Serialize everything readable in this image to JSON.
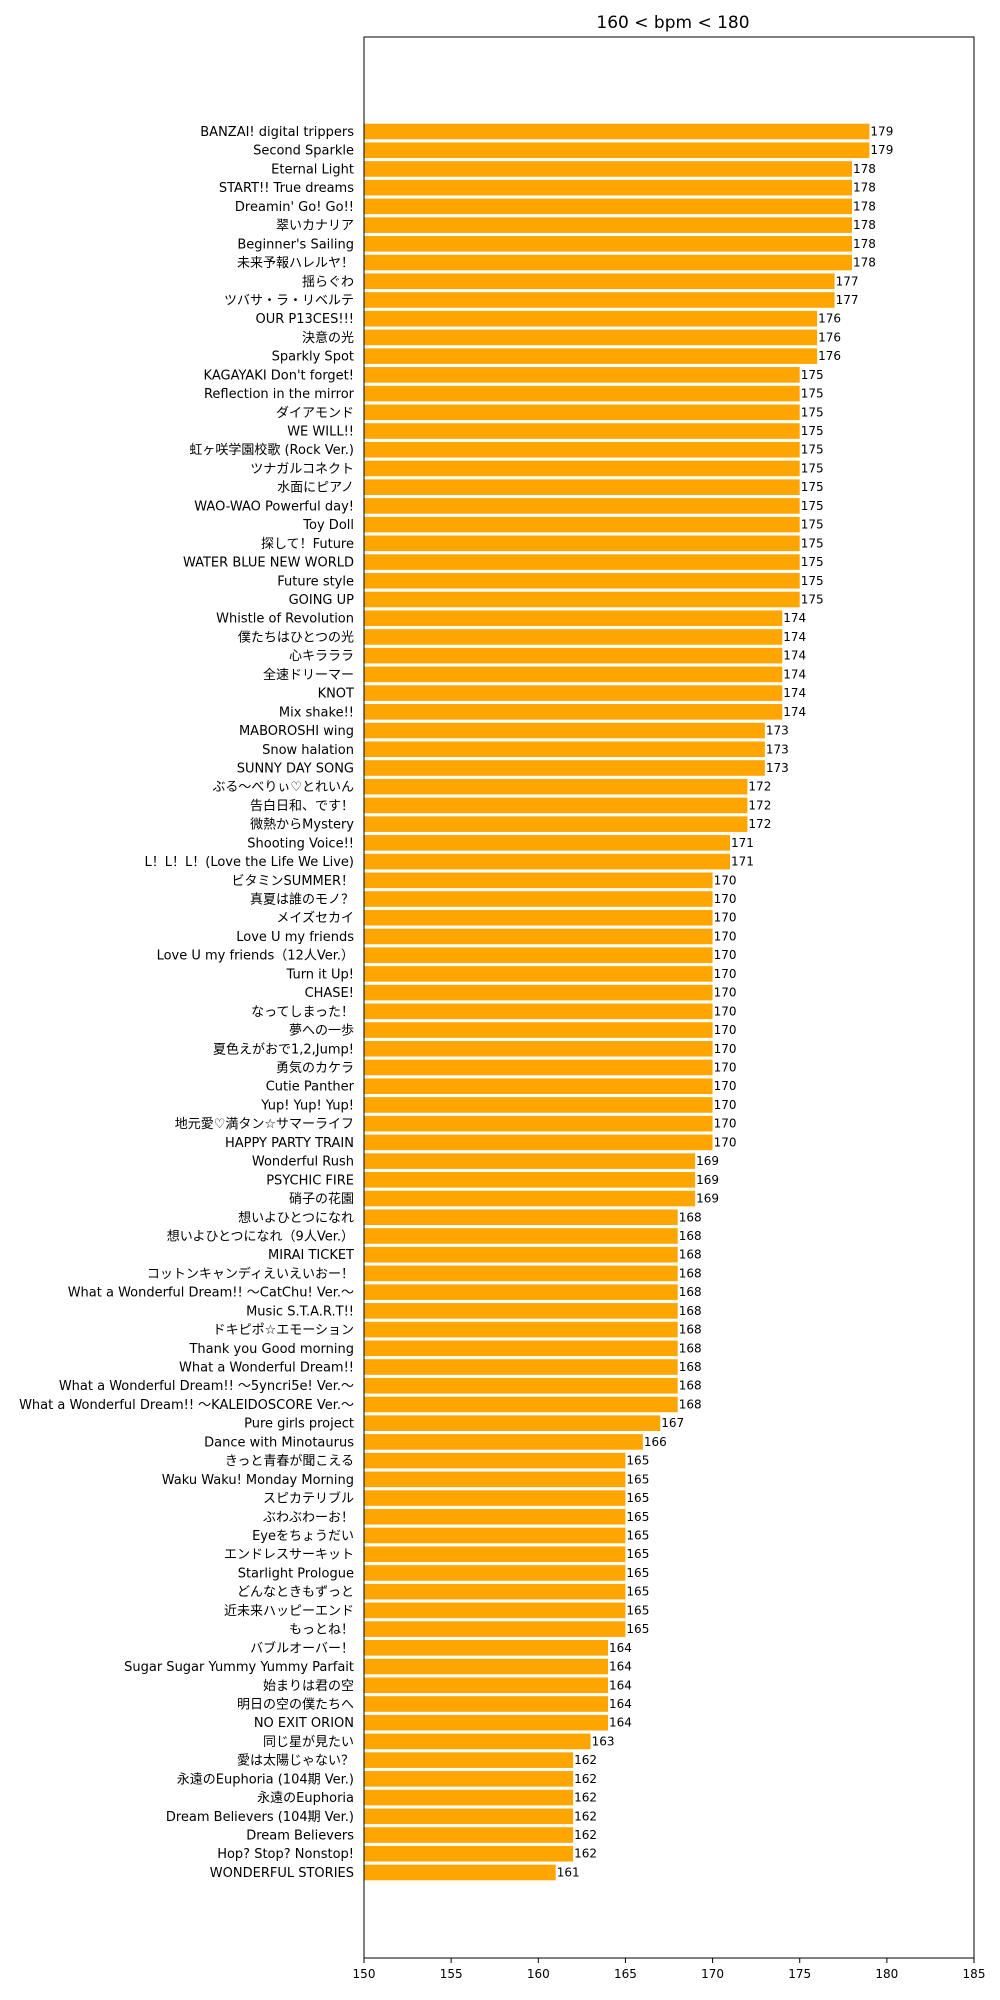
{
  "chart_data": {
    "type": "bar",
    "orientation": "horizontal",
    "title": "160 < bpm < 180",
    "xlabel": "",
    "ylabel": "",
    "xlim": [
      150,
      185
    ],
    "xticks": [
      150,
      155,
      160,
      165,
      170,
      175,
      180,
      185
    ],
    "grid": false,
    "bar_color": "#FFA500",
    "categories": [
      "BANZAI! digital trippers",
      "Second Sparkle",
      "Eternal Light",
      "START!! True dreams",
      "Dreamin' Go! Go!!",
      "翠いカナリア",
      "Beginner's Sailing",
      "未来予報ハレルヤ！",
      "揺らぐわ",
      "ツバサ・ラ・リベルテ",
      "OUR P13CES!!!",
      "決意の光",
      "Sparkly Spot",
      "KAGAYAKI Don't forget!",
      "Reflection in the mirror",
      "ダイアモンド",
      "WE WILL!!",
      "虹ヶ咲学園校歌 (Rock Ver.)",
      "ツナガルコネクト",
      "水面にピアノ",
      "WAO-WAO Powerful day!",
      "Toy Doll",
      "探して！Future",
      "WATER BLUE NEW WORLD",
      "Future style",
      "GOING UP",
      "Whistle of Revolution",
      "僕たちはひとつの光",
      "心キラララ",
      "全速ドリーマー",
      "KNOT",
      "Mix shake!!",
      "MABOROSHI wing",
      "Snow halation",
      "SUNNY DAY SONG",
      "ぶる〜べりぃ♡とれいん",
      "告白日和、です！",
      "微熱からMystery",
      "Shooting Voice!!",
      "L！L！L！(Love the Life We Live)",
      "ビタミンSUMMER！",
      "真夏は誰のモノ？",
      "メイズセカイ",
      "Love U my friends",
      "Love U my friends（12人Ver.）",
      "Turn it Up!",
      "CHASE!",
      "なってしまった！",
      "夢への一歩",
      "夏色えがおで1,2,Jump!",
      "勇気のカケラ",
      "Cutie Panther",
      "Yup! Yup! Yup!",
      "地元愛♡満タン☆サマーライフ",
      "HAPPY PARTY TRAIN",
      "Wonderful Rush",
      "PSYCHIC FIRE",
      "硝子の花園",
      "想いよひとつになれ",
      "想いよひとつになれ（9人Ver.）",
      "MIRAI TICKET",
      "コットンキャンディえいえいおー！",
      "What a Wonderful Dream!! 〜CatChu! Ver.〜",
      "Music S.T.A.R.T!!",
      "ドキピポ☆エモーション",
      "Thank you Good morning",
      "What a Wonderful Dream!!",
      "What a Wonderful Dream!! 〜5yncri5e! Ver.〜",
      "What a Wonderful Dream!! 〜KALEIDOSCORE Ver.〜",
      "Pure girls project",
      "Dance with Minotaurus",
      "きっと青春が聞こえる",
      "Waku Waku! Monday Morning",
      "スピカテリブル",
      "ぶわぶわーお！",
      "Eyeをちょうだい",
      "エンドレスサーキット",
      "Starlight Prologue",
      "どんなときもずっと",
      "近未来ハッピーエンド",
      "もっとね！",
      "バブルオーバー！",
      "Sugar Sugar Yummy Yummy Parfait",
      "始まりは君の空",
      "明日の空の僕たちへ",
      "NO EXIT ORION",
      "同じ星が見たい",
      "愛は太陽じゃない？",
      "永遠のEuphoria (104期 Ver.)",
      "永遠のEuphoria",
      "Dream Believers (104期 Ver.)",
      "Dream Believers",
      "Hop? Stop? Nonstop!",
      "WONDERFUL STORIES"
    ],
    "values": [
      179,
      179,
      178,
      178,
      178,
      178,
      178,
      178,
      177,
      177,
      176,
      176,
      176,
      175,
      175,
      175,
      175,
      175,
      175,
      175,
      175,
      175,
      175,
      175,
      175,
      175,
      174,
      174,
      174,
      174,
      174,
      174,
      173,
      173,
      173,
      172,
      172,
      172,
      171,
      171,
      170,
      170,
      170,
      170,
      170,
      170,
      170,
      170,
      170,
      170,
      170,
      170,
      170,
      170,
      170,
      169,
      169,
      169,
      168,
      168,
      168,
      168,
      168,
      168,
      168,
      168,
      168,
      168,
      168,
      167,
      166,
      165,
      165,
      165,
      165,
      165,
      165,
      165,
      165,
      165,
      165,
      164,
      164,
      164,
      164,
      164,
      163,
      162,
      162,
      162,
      162,
      162,
      162,
      161
    ]
  }
}
